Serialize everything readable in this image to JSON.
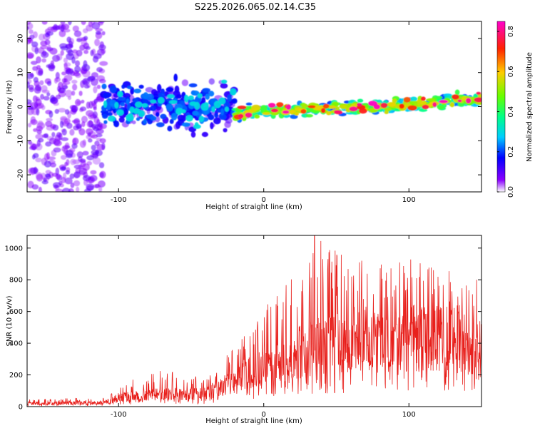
{
  "title": "S225.2026.065.02.14.C35",
  "chart_data": [
    {
      "type": "heatmap",
      "name": "spectrogram",
      "xlabel": "Height of straight line (km)",
      "ylabel": "Frequency (Hz)",
      "xlim": [
        -163,
        150
      ],
      "ylim": [
        -25,
        25
      ],
      "xticks": [
        -100,
        0,
        100
      ],
      "yticks": [
        -20,
        -10,
        0,
        10,
        20
      ],
      "colorbar": {
        "label": "Normalized spectral amplitude",
        "range": [
          0.0,
          0.85
        ],
        "ticks": [
          0.0,
          0.2,
          0.4,
          0.6,
          0.8
        ],
        "tick_labels": [
          "0.0",
          "0.2",
          "0.4",
          "0.6",
          "0.8"
        ],
        "colormap": [
          "#ffffff",
          "#7a00ff",
          "#0000ff",
          "#00ffff",
          "#00ff00",
          "#ffff00",
          "#ff0000",
          "#ff00ff"
        ]
      },
      "regions": [
        {
          "x_range": [
            -163,
            -110
          ],
          "freq_center": 0,
          "freq_spread": 25,
          "amplitude": 0.08,
          "description": "noise"
        },
        {
          "x_range": [
            -110,
            -20
          ],
          "freq_center": 0,
          "freq_spread": 10,
          "amplitude": 0.18
        },
        {
          "x_range": [
            -20,
            150
          ],
          "freq_center_start": -2,
          "freq_center_end": 2,
          "freq_spread": 3,
          "amplitude": 0.45,
          "peak_amplitude": 0.85
        }
      ]
    },
    {
      "type": "line",
      "name": "snr",
      "xlabel": "Height of straight line (km)",
      "ylabel": "SNR (10 * v/v)",
      "xlim": [
        -163,
        150
      ],
      "ylim": [
        0,
        1080
      ],
      "xticks": [
        -100,
        0,
        100
      ],
      "yticks": [
        0,
        200,
        400,
        600,
        800,
        1000
      ],
      "color": "#e8201c",
      "envelope": [
        {
          "x": -163,
          "mean": 20,
          "peak": 45
        },
        {
          "x": -110,
          "mean": 25,
          "peak": 60
        },
        {
          "x": -100,
          "mean": 60,
          "peak": 140
        },
        {
          "x": -70,
          "mean": 80,
          "peak": 230
        },
        {
          "x": -40,
          "mean": 80,
          "peak": 180
        },
        {
          "x": -20,
          "mean": 170,
          "peak": 400
        },
        {
          "x": 0,
          "mean": 270,
          "peak": 620
        },
        {
          "x": 20,
          "mean": 330,
          "peak": 820
        },
        {
          "x": 35,
          "mean": 370,
          "peak": 1080
        },
        {
          "x": 60,
          "mean": 420,
          "peak": 920
        },
        {
          "x": 100,
          "mean": 430,
          "peak": 940
        },
        {
          "x": 130,
          "mean": 420,
          "peak": 870
        },
        {
          "x": 150,
          "mean": 380,
          "peak": 800
        }
      ]
    }
  ]
}
